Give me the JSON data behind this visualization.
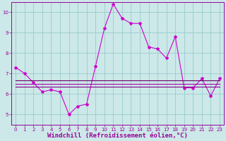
{
  "xlabel": "Windchill (Refroidissement éolien,°C)",
  "ylabel": "",
  "bg_color": "#cce8e8",
  "grid_color": "#99cccc",
  "xlim": [
    -0.5,
    23.5
  ],
  "ylim": [
    4.5,
    10.5
  ],
  "yticks": [
    5,
    6,
    7,
    8,
    9,
    10
  ],
  "xticks": [
    0,
    1,
    2,
    3,
    4,
    5,
    6,
    7,
    8,
    9,
    10,
    11,
    12,
    13,
    14,
    15,
    16,
    17,
    18,
    19,
    20,
    21,
    22,
    23
  ],
  "series": [
    {
      "x": [
        0,
        1,
        2,
        3,
        4,
        5,
        6,
        7,
        8,
        9,
        10,
        11,
        12,
        13,
        14,
        15,
        16,
        17,
        18,
        19,
        20,
        21,
        22,
        23
      ],
      "y": [
        7.3,
        7.0,
        6.55,
        6.1,
        6.2,
        6.1,
        5.0,
        5.4,
        5.5,
        7.35,
        9.2,
        10.4,
        9.7,
        9.45,
        9.45,
        8.3,
        8.2,
        7.75,
        8.8,
        6.3,
        6.3,
        6.75,
        5.9,
        6.75
      ],
      "color": "#cc00cc",
      "linewidth": 0.8,
      "marker": "*",
      "markersize": 3
    },
    {
      "x": [
        0,
        1,
        2,
        3,
        4,
        5,
        6,
        7,
        8,
        9,
        10,
        11,
        12,
        13,
        14,
        15,
        16,
        17,
        18,
        19,
        20,
        21,
        22,
        23
      ],
      "y": [
        6.65,
        6.65,
        6.65,
        6.65,
        6.65,
        6.65,
        6.65,
        6.65,
        6.65,
        6.65,
        6.65,
        6.65,
        6.65,
        6.65,
        6.65,
        6.65,
        6.65,
        6.65,
        6.65,
        6.65,
        6.65,
        6.65,
        6.65,
        6.65
      ],
      "color": "#660066",
      "linewidth": 0.8,
      "marker": null,
      "markersize": 0
    },
    {
      "x": [
        0,
        1,
        2,
        3,
        4,
        5,
        6,
        7,
        8,
        9,
        10,
        11,
        12,
        13,
        14,
        15,
        16,
        17,
        18,
        19,
        20,
        21,
        22,
        23
      ],
      "y": [
        6.5,
        6.5,
        6.5,
        6.5,
        6.5,
        6.5,
        6.5,
        6.5,
        6.5,
        6.5,
        6.5,
        6.5,
        6.5,
        6.5,
        6.5,
        6.5,
        6.5,
        6.5,
        6.5,
        6.5,
        6.5,
        6.5,
        6.5,
        6.5
      ],
      "color": "#aa00aa",
      "linewidth": 0.8,
      "marker": null,
      "markersize": 0
    },
    {
      "x": [
        0,
        1,
        2,
        3,
        4,
        5,
        6,
        7,
        8,
        9,
        10,
        11,
        12,
        13,
        14,
        15,
        16,
        17,
        18,
        19,
        20,
        21,
        22,
        23
      ],
      "y": [
        6.35,
        6.35,
        6.35,
        6.35,
        6.35,
        6.35,
        6.35,
        6.35,
        6.35,
        6.35,
        6.35,
        6.35,
        6.35,
        6.35,
        6.35,
        6.35,
        6.35,
        6.35,
        6.35,
        6.35,
        6.35,
        6.35,
        6.35,
        6.35
      ],
      "color": "#880088",
      "linewidth": 0.8,
      "marker": null,
      "markersize": 0
    }
  ],
  "tick_color": "#990099",
  "tick_fontsize": 5,
  "xlabel_fontsize": 6.5,
  "axis_line_color": "#990099"
}
